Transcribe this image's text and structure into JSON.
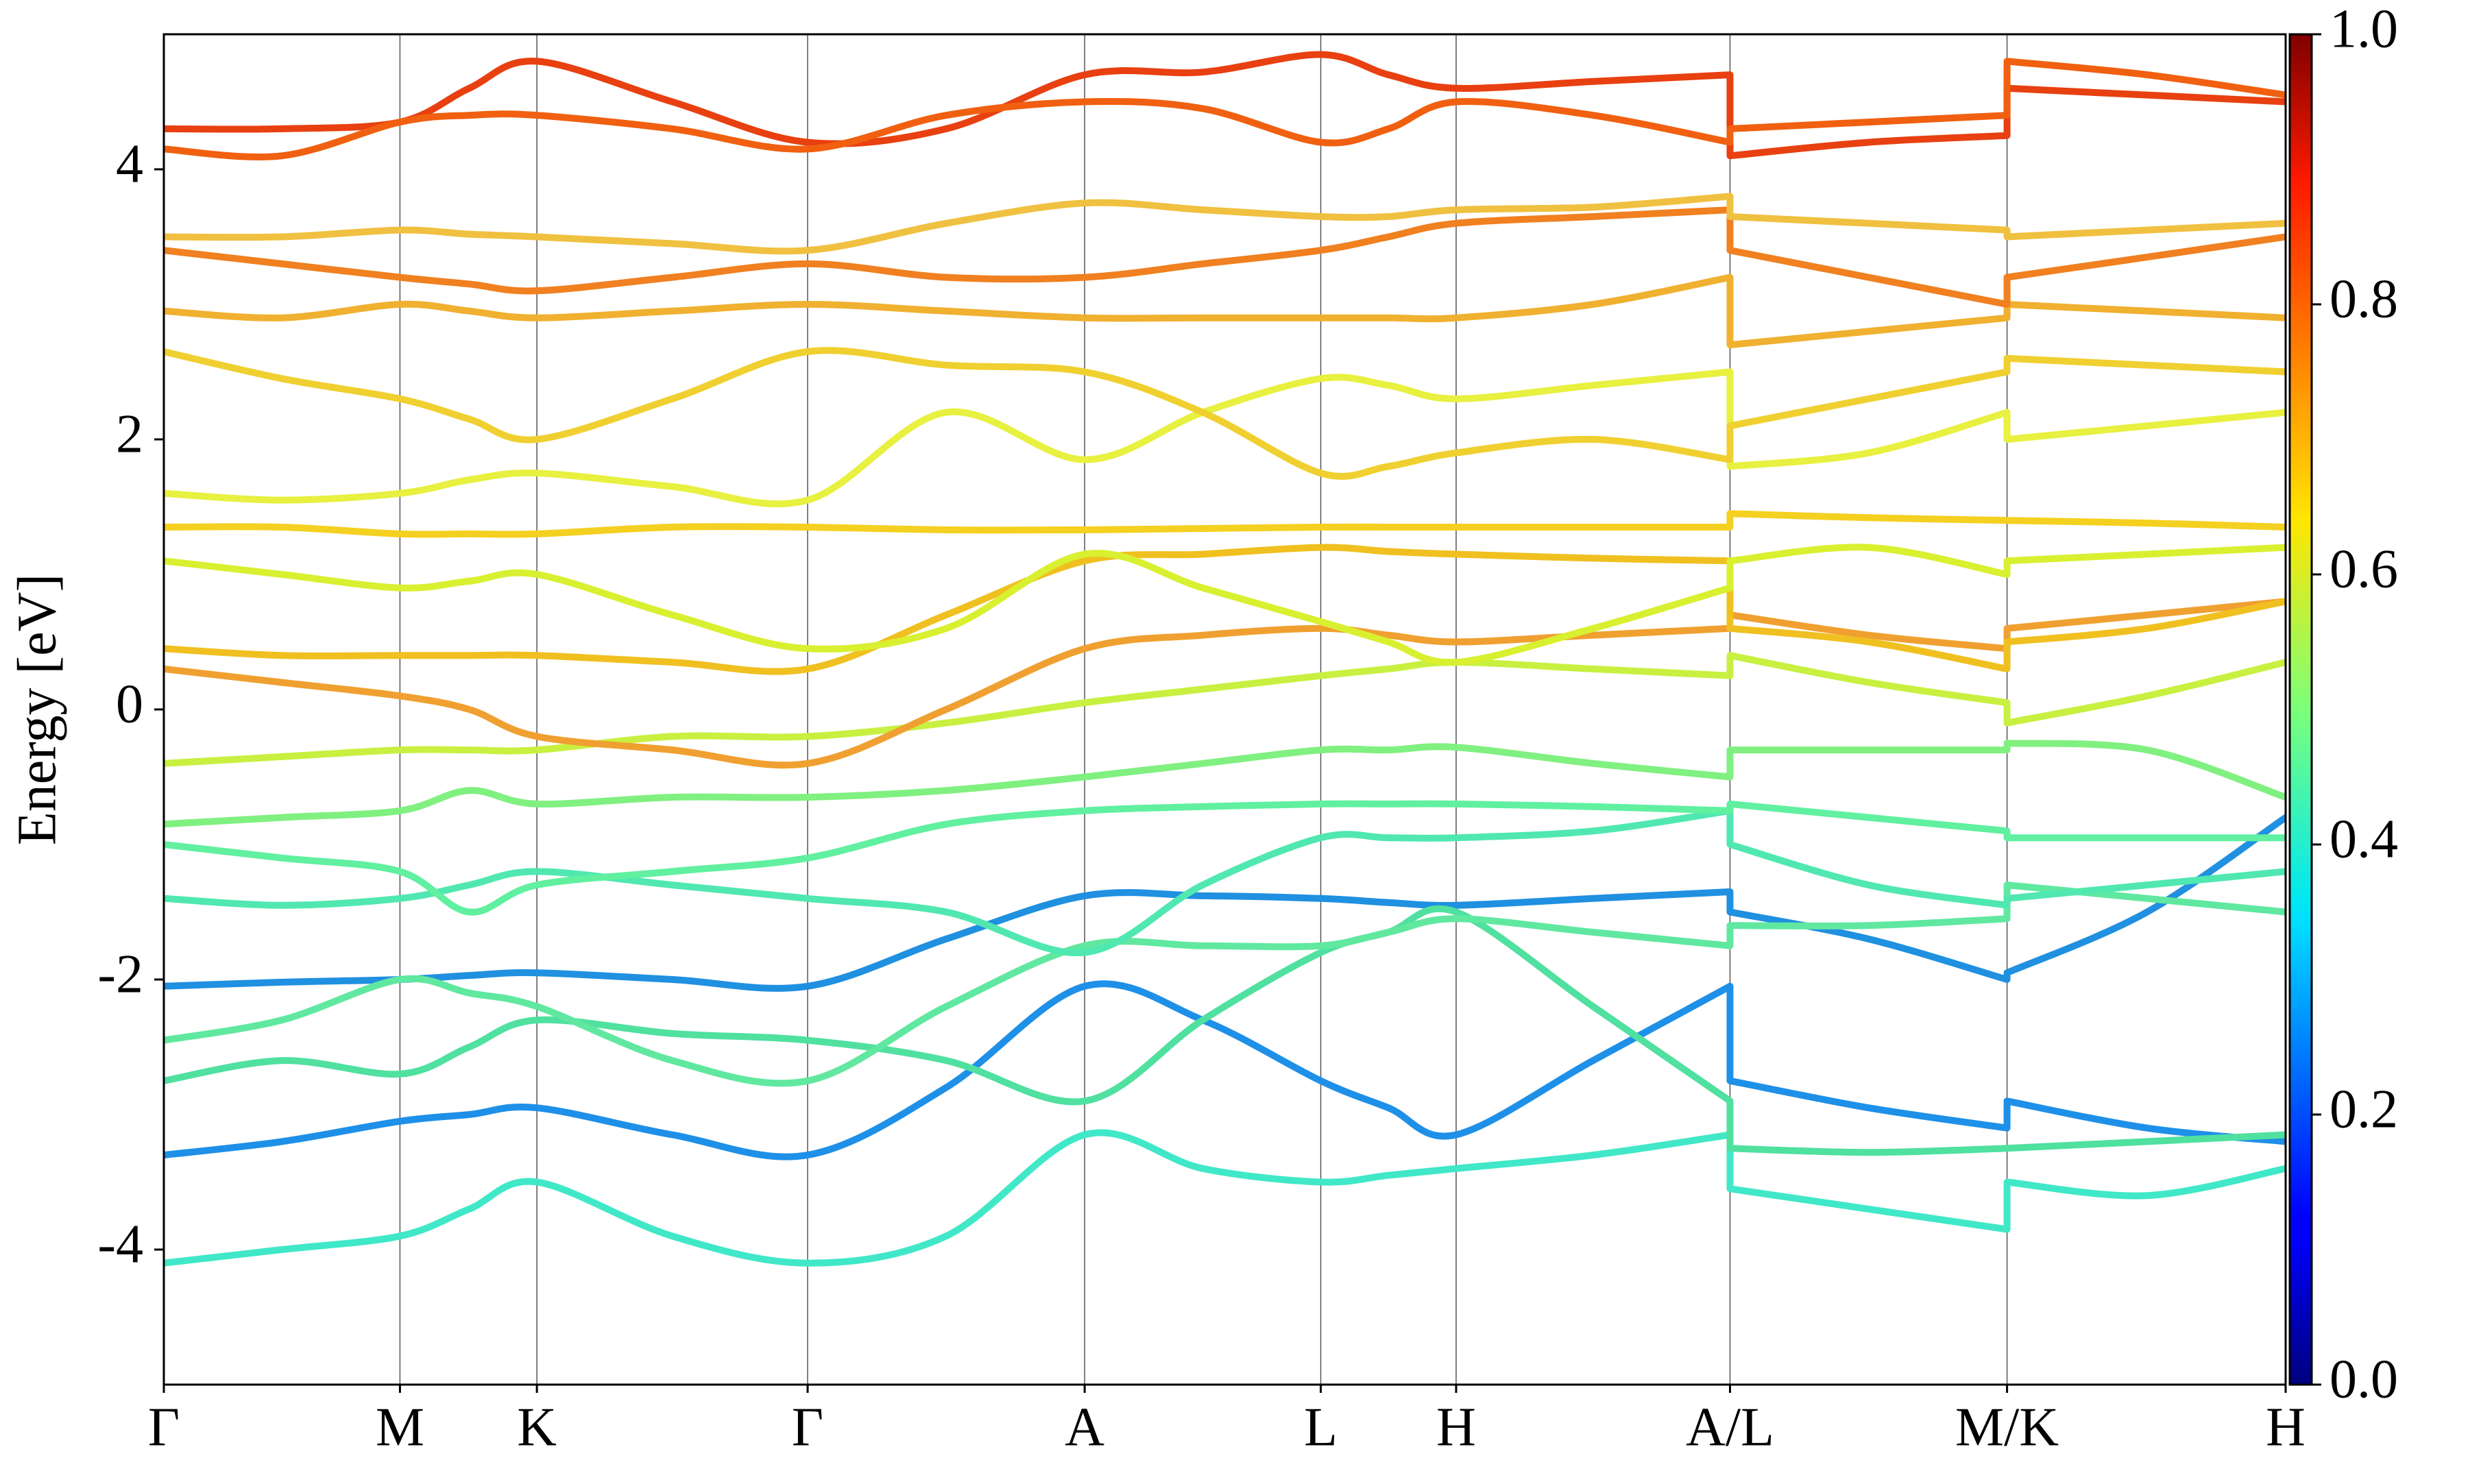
{
  "chart_data": {
    "type": "band-structure",
    "y_label": "Energy [eV]",
    "x": [
      0,
      0.75,
      1.5,
      1.94,
      2.37,
      3.23,
      4.09,
      4.97,
      5.85,
      6.6,
      7.35,
      7.78,
      8.21,
      9.08,
      9.95,
      9.95,
      10.83,
      11.71,
      11.71,
      12.6,
      13.48
    ],
    "xlim": [
      0,
      13.48
    ],
    "xticks": [
      {
        "value": 0,
        "label": "Γ"
      },
      {
        "value": 1.5,
        "label": "M"
      },
      {
        "value": 2.37,
        "label": "K"
      },
      {
        "value": 4.09,
        "label": "Γ"
      },
      {
        "value": 5.85,
        "label": "A"
      },
      {
        "value": 7.35,
        "label": "L"
      },
      {
        "value": 8.21,
        "label": "H"
      },
      {
        "value": 9.95,
        "label": "A/L"
      },
      {
        "value": 11.71,
        "label": "M/K"
      },
      {
        "value": 13.48,
        "label": "H"
      }
    ],
    "ylim": [
      -5,
      5
    ],
    "yticks": [
      -4,
      -2,
      0,
      2,
      4
    ],
    "grid": "x",
    "colorbar": {
      "clim": [
        0,
        1
      ],
      "ticks": [
        {
          "value": 0,
          "label": "0.0"
        },
        0.2,
        0.4,
        0.6,
        0.8,
        {
          "value": 1,
          "label": "1.0"
        }
      ],
      "colormap": "jet"
    },
    "series": [
      {
        "color": "#40e8c8",
        "values": [
          -4.1,
          -4.0,
          -3.9,
          -3.7,
          -3.5,
          -3.9,
          -4.1,
          -3.9,
          -3.15,
          -3.4,
          -3.5,
          -3.45,
          -3.4,
          -3.3,
          -3.15,
          -3.55,
          -3.7,
          -3.85,
          -3.5,
          -3.6,
          -3.4
        ]
      },
      {
        "color": "#1e90e8",
        "values": [
          -3.3,
          -3.2,
          -3.05,
          -3.0,
          -2.95,
          -3.15,
          -3.3,
          -2.8,
          -2.05,
          -2.3,
          -2.75,
          -2.95,
          -3.15,
          -2.6,
          -2.05,
          -2.75,
          -2.95,
          -3.1,
          -2.9,
          -3.1,
          -3.2
        ]
      },
      {
        "color": "#2090e0",
        "values": [
          -2.05,
          -2.02,
          -2.0,
          -1.97,
          -1.95,
          -2.0,
          -2.05,
          -1.7,
          -1.38,
          -1.38,
          -1.4,
          -1.43,
          -1.45,
          -1.4,
          -1.35,
          -1.5,
          -1.7,
          -2.0,
          -1.95,
          -1.5,
          -0.8
        ]
      },
      {
        "color": "#50e0a0",
        "values": [
          -2.75,
          -2.6,
          -2.7,
          -2.5,
          -2.3,
          -2.4,
          -2.45,
          -2.6,
          -2.9,
          -2.3,
          -1.8,
          -1.65,
          -1.5,
          -2.2,
          -2.9,
          -3.25,
          -3.28,
          -3.25,
          -3.25,
          -3.2,
          -3.15
        ]
      },
      {
        "color": "#60e8a0",
        "values": [
          -2.45,
          -2.3,
          -2.0,
          -2.1,
          -2.2,
          -2.6,
          -2.75,
          -2.2,
          -1.75,
          -1.75,
          -1.75,
          -1.65,
          -1.55,
          -1.65,
          -1.75,
          -1.6,
          -1.6,
          -1.55,
          -1.3,
          -1.4,
          -1.5
        ]
      },
      {
        "color": "#50e8b0",
        "values": [
          -1.4,
          -1.45,
          -1.4,
          -1.3,
          -1.2,
          -1.3,
          -1.4,
          -1.5,
          -1.8,
          -1.3,
          -0.95,
          -0.95,
          -0.95,
          -0.9,
          -0.75,
          -1.0,
          -1.3,
          -1.45,
          -1.4,
          -1.3,
          -1.2
        ]
      },
      {
        "color": "#60f0a0",
        "values": [
          -1.0,
          -1.1,
          -1.2,
          -1.5,
          -1.3,
          -1.2,
          -1.1,
          -0.85,
          -0.75,
          -0.72,
          -0.7,
          -0.7,
          -0.7,
          -0.72,
          -0.75,
          -0.7,
          -0.8,
          -0.9,
          -0.95,
          -0.95,
          -0.95
        ]
      },
      {
        "color": "#80f080",
        "values": [
          -0.85,
          -0.8,
          -0.75,
          -0.6,
          -0.7,
          -0.65,
          -0.65,
          -0.6,
          -0.5,
          -0.4,
          -0.3,
          -0.3,
          -0.28,
          -0.4,
          -0.5,
          -0.3,
          -0.3,
          -0.3,
          -0.25,
          -0.3,
          -0.65
        ]
      },
      {
        "color": "#c8f040",
        "values": [
          -0.4,
          -0.35,
          -0.3,
          -0.3,
          -0.3,
          -0.2,
          -0.2,
          -0.1,
          0.05,
          0.15,
          0.25,
          0.3,
          0.35,
          0.3,
          0.25,
          0.4,
          0.2,
          0.05,
          -0.1,
          0.1,
          0.35
        ]
      },
      {
        "color": "#f0a030",
        "values": [
          0.3,
          0.2,
          0.1,
          0.0,
          -0.2,
          -0.3,
          -0.4,
          0.0,
          0.45,
          0.55,
          0.6,
          0.55,
          0.5,
          0.55,
          0.6,
          0.7,
          0.55,
          0.45,
          0.6,
          0.7,
          0.8
        ]
      },
      {
        "color": "#f0c020",
        "values": [
          0.45,
          0.4,
          0.4,
          0.4,
          0.4,
          0.35,
          0.3,
          0.7,
          1.1,
          1.15,
          1.2,
          1.17,
          1.15,
          1.12,
          1.1,
          0.6,
          0.5,
          0.3,
          0.5,
          0.6,
          0.8
        ]
      },
      {
        "color": "#d8f030",
        "values": [
          1.1,
          1.0,
          0.9,
          0.95,
          1.0,
          0.7,
          0.45,
          0.6,
          1.15,
          0.9,
          0.65,
          0.5,
          0.35,
          0.6,
          0.9,
          1.1,
          1.2,
          1.0,
          1.1,
          1.15,
          1.2
        ]
      },
      {
        "color": "#f4d020",
        "values": [
          1.35,
          1.35,
          1.3,
          1.3,
          1.3,
          1.35,
          1.35,
          1.33,
          1.33,
          1.34,
          1.35,
          1.35,
          1.35,
          1.35,
          1.35,
          1.45,
          1.42,
          1.4,
          1.4,
          1.38,
          1.35
        ]
      },
      {
        "color": "#e8f040",
        "values": [
          1.6,
          1.55,
          1.6,
          1.7,
          1.75,
          1.65,
          1.55,
          2.2,
          1.85,
          2.2,
          2.45,
          2.4,
          2.3,
          2.4,
          2.5,
          1.8,
          1.9,
          2.2,
          2.0,
          2.1,
          2.2
        ]
      },
      {
        "color": "#f0d030",
        "values": [
          2.65,
          2.45,
          2.3,
          2.15,
          2.0,
          2.3,
          2.65,
          2.55,
          2.5,
          2.2,
          1.75,
          1.8,
          1.9,
          2.0,
          1.85,
          2.1,
          2.3,
          2.5,
          2.6,
          2.55,
          2.5
        ]
      },
      {
        "color": "#f0b030",
        "values": [
          2.95,
          2.9,
          3.0,
          2.95,
          2.9,
          2.95,
          3.0,
          2.95,
          2.9,
          2.9,
          2.9,
          2.9,
          2.9,
          3.0,
          3.2,
          2.7,
          2.8,
          2.9,
          3.0,
          2.95,
          2.9
        ]
      },
      {
        "color": "#f08020",
        "values": [
          3.4,
          3.3,
          3.2,
          3.15,
          3.1,
          3.2,
          3.3,
          3.2,
          3.2,
          3.3,
          3.4,
          3.5,
          3.6,
          3.65,
          3.7,
          3.4,
          3.2,
          3.0,
          3.2,
          3.35,
          3.5
        ]
      },
      {
        "color": "#f0c040",
        "values": [
          3.5,
          3.5,
          3.55,
          3.52,
          3.5,
          3.45,
          3.4,
          3.6,
          3.75,
          3.7,
          3.65,
          3.65,
          3.7,
          3.72,
          3.8,
          3.65,
          3.6,
          3.55,
          3.5,
          3.55,
          3.6
        ]
      },
      {
        "color": "#e84010",
        "values": [
          4.3,
          4.3,
          4.35,
          4.6,
          4.8,
          4.5,
          4.2,
          4.3,
          4.7,
          4.72,
          4.85,
          4.7,
          4.6,
          4.65,
          4.7,
          4.1,
          4.2,
          4.25,
          4.6,
          4.55,
          4.5
        ]
      },
      {
        "color": "#f06010",
        "values": [
          4.15,
          4.1,
          4.35,
          4.4,
          4.4,
          4.3,
          4.15,
          4.4,
          4.5,
          4.45,
          4.2,
          4.3,
          4.5,
          4.4,
          4.2,
          4.3,
          4.35,
          4.4,
          4.8,
          4.7,
          4.55
        ]
      }
    ]
  }
}
